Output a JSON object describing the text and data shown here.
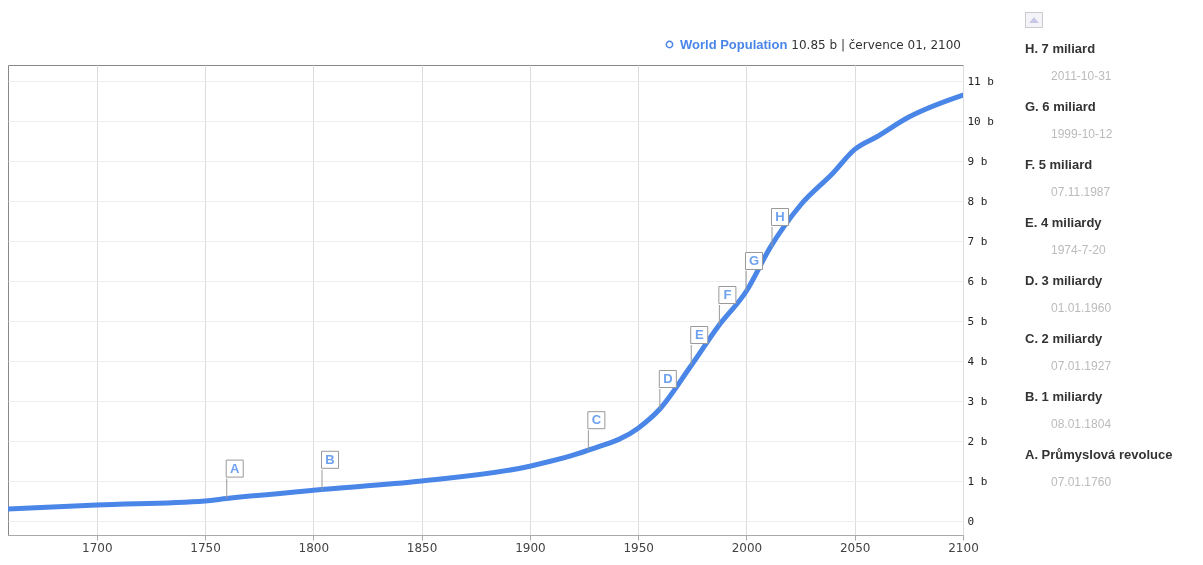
{
  "chart_data": {
    "type": "line",
    "x": [
      1659,
      1700,
      1750,
      1760,
      1800,
      1850,
      1900,
      1927,
      1950,
      1960,
      1974,
      1987,
      2000,
      2011,
      2025,
      2040,
      2050,
      2060,
      2075,
      2100
    ],
    "series": [
      {
        "name": "World Population",
        "color": "#4a86e8",
        "values": [
          0.3,
          0.4,
          0.5,
          0.56,
          0.77,
          1.0,
          1.37,
          1.77,
          2.32,
          2.8,
          3.85,
          4.87,
          5.75,
          6.84,
          7.9,
          8.7,
          9.29,
          9.6,
          10.1,
          10.65
        ]
      }
    ],
    "xlim": [
      1659,
      2100
    ],
    "xticks": [
      1700,
      1750,
      1800,
      1850,
      1900,
      1950,
      2000,
      2050,
      2100
    ],
    "ylim": [
      -0.35,
      11.4
    ],
    "yticks": [
      0,
      {
        "value": 1,
        "label": "1 b"
      },
      {
        "value": 2,
        "label": "2 b"
      },
      {
        "value": 3,
        "label": "3 b"
      },
      {
        "value": 4,
        "label": "4 b"
      },
      {
        "value": 5,
        "label": "5 b"
      },
      {
        "value": 6,
        "label": "6 b"
      },
      {
        "value": 7,
        "label": "7 b"
      },
      {
        "value": 8,
        "label": "8 b"
      },
      {
        "value": 9,
        "label": "9 b"
      },
      {
        "value": 10,
        "label": "10 b"
      },
      {
        "value": 11,
        "label": "11 b"
      }
    ],
    "grid": true,
    "legend": "top right",
    "marker": "none",
    "line_style": "solid",
    "annotations": [
      "10.85 b | července 01, 2100",
      {
        "text": "A",
        "x": 1760,
        "y": 0.56
      },
      {
        "text": "B",
        "x": 1804,
        "y": 0.78
      },
      {
        "text": "C",
        "x": 1927,
        "y": 1.77
      },
      {
        "text": "D",
        "x": 1960,
        "y": 2.8
      },
      {
        "text": "E",
        "x": 1974.5,
        "y": 3.9
      },
      {
        "text": "F",
        "x": 1987.5,
        "y": 4.9
      },
      {
        "text": "G",
        "x": 1999.8,
        "y": 5.75
      },
      {
        "text": "H",
        "x": 2011.8,
        "y": 6.85
      },
      "H. 7 miliard",
      "2011-10-31",
      "G. 6 miliard",
      "1999-10-12",
      "F. 5 miliard",
      "07.11.1987",
      "E. 4 miliardy",
      "1974-7-20",
      "D. 3 miliardy",
      "01.01.1960",
      "C. 2 miliardy",
      "07.01.1927",
      "B. 1 miliardy",
      "08.01.1804",
      "A. Průmyslová revoluce",
      "07.01.1760"
    ]
  }
}
